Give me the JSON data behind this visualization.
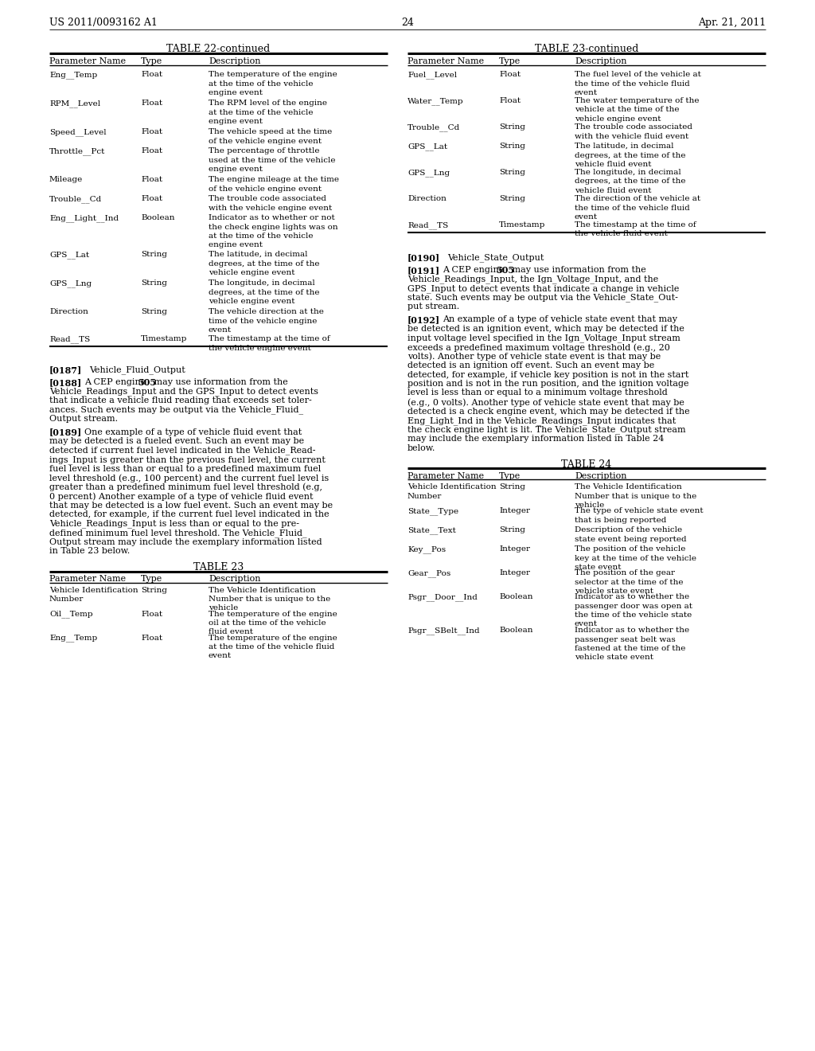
{
  "header_left": "US 2011/0093162 A1",
  "header_right": "Apr. 21, 2011",
  "page_number": "24",
  "background_color": "#ffffff",
  "table22_title": "TABLE 22-continued",
  "table22_headers": [
    "Parameter Name",
    "Type",
    "Description"
  ],
  "table22_rows": [
    [
      "Eng__Temp",
      "Float",
      "The temperature of the engine\nat the time of the vehicle\nengine event"
    ],
    [
      "RPM__Level",
      "Float",
      "The RPM level of the engine\nat the time of the vehicle\nengine event"
    ],
    [
      "Speed__Level",
      "Float",
      "The vehicle speed at the time\nof the vehicle engine event"
    ],
    [
      "Throttle__Pct",
      "Float",
      "The percentage of throttle\nused at the time of the vehicle\nengine event"
    ],
    [
      "Mileage",
      "Float",
      "The engine mileage at the time\nof the vehicle engine event"
    ],
    [
      "Trouble__Cd",
      "Float",
      "The trouble code associated\nwith the vehicle engine event"
    ],
    [
      "Eng__Light__Ind",
      "Boolean",
      "Indicator as to whether or not\nthe check engine lights was on\nat the time of the vehicle\nengine event"
    ],
    [
      "GPS__Lat",
      "String",
      "The latitude, in decimal\ndegrees, at the time of the\nvehicle engine event"
    ],
    [
      "GPS__Lng",
      "String",
      "The longitude, in decimal\ndegrees, at the time of the\nvehicle engine event"
    ],
    [
      "Direction",
      "String",
      "The vehicle direction at the\ntime of the vehicle engine\nevent"
    ],
    [
      "Read__TS",
      "Timestamp",
      "The timestamp at the time of\nthe vehicle engine event"
    ]
  ],
  "table23c_title": "TABLE 23-continued",
  "table23c_headers": [
    "Parameter Name",
    "Type",
    "Description"
  ],
  "table23c_rows": [
    [
      "Fuel__Level",
      "Float",
      "The fuel level of the vehicle at\nthe time of the vehicle fluid\nevent"
    ],
    [
      "Water__Temp",
      "Float",
      "The water temperature of the\nvehicle at the time of the\nvehicle engine event"
    ],
    [
      "Trouble__Cd",
      "String",
      "The trouble code associated\nwith the vehicle fluid event"
    ],
    [
      "GPS__Lat",
      "String",
      "The latitude, in decimal\ndegrees, at the time of the\nvehicle fluid event"
    ],
    [
      "GPS__Lng",
      "String",
      "The longitude, in decimal\ndegrees, at the time of the\nvehicle fluid event"
    ],
    [
      "Direction",
      "String",
      "The direction of the vehicle at\nthe time of the vehicle fluid\nevent"
    ],
    [
      "Read__TS",
      "Timestamp",
      "The timestamp at the time of\nthe vehicle fluid event"
    ]
  ],
  "table23_title": "TABLE 23",
  "table23_rows": [
    [
      "Vehicle Identification\nNumber",
      "String",
      "The Vehicle Identification\nNumber that is unique to the\nvehicle"
    ],
    [
      "Oil__Temp",
      "Float",
      "The temperature of the engine\noil at the time of the vehicle\nfluid event"
    ],
    [
      "Eng__Temp",
      "Float",
      "The temperature of the engine\nat the time of the vehicle fluid\nevent"
    ]
  ],
  "table24_title": "TABLE 24",
  "table24_rows": [
    [
      "Vehicle Identification\nNumber",
      "String",
      "The Vehicle Identification\nNumber that is unique to the\nvehicle"
    ],
    [
      "State__Type",
      "Integer",
      "The type of vehicle state event\nthat is being reported"
    ],
    [
      "State__Text",
      "String",
      "Description of the vehicle\nstate event being reported"
    ],
    [
      "Key__Pos",
      "Integer",
      "The position of the vehicle\nkey at the time of the vehicle\nstate event"
    ],
    [
      "Gear__Pos",
      "Integer",
      "The position of the gear\nselector at the time of the\nvehicle state event"
    ],
    [
      "Psgr__Door__Ind",
      "Boolean",
      "Indicator as to whether the\npassenger door was open at\nthe time of the vehicle state\nevent"
    ],
    [
      "Psgr__SBelt__Ind",
      "Boolean",
      "Indicator as to whether the\npassenger seat belt was\nfastened at the time of the\nvehicle state event"
    ]
  ]
}
